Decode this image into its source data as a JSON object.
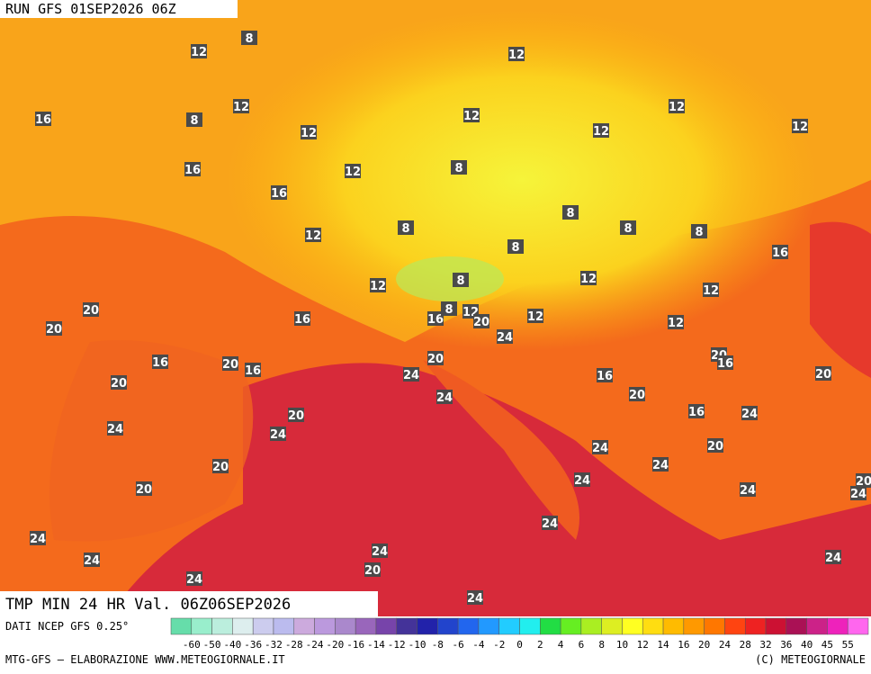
{
  "header": {
    "run": "RUN GFS 01SEP2026 06Z"
  },
  "title": "TMP MIN 24 HR Val. 06Z06SEP2026",
  "source": "DATI NCEP GFS 0.25°",
  "credit_left": "MTG-GFS – ELABORAZIONE WWW.METEOGIORNALE.IT",
  "credit_right": "(C) METEOGIORNALE",
  "colorbar": {
    "ticks": [
      -60,
      -50,
      -40,
      -36,
      -32,
      -28,
      -24,
      -20,
      -16,
      -14,
      -12,
      -10,
      -8,
      -6,
      -4,
      -2,
      0,
      2,
      4,
      6,
      8,
      10,
      12,
      14,
      16,
      20,
      24,
      28,
      32,
      36,
      40,
      45,
      55
    ],
    "colors": [
      "#66ddaa",
      "#99eecc",
      "#bbeedd",
      "#ddeeee",
      "#ccccee",
      "#bbbbee",
      "#ccaadd",
      "#bb99dd",
      "#aa88cc",
      "#9966bb",
      "#7744aa",
      "#443399",
      "#2222aa",
      "#2244cc",
      "#2266ee",
      "#2299ff",
      "#22ccff",
      "#22eeee",
      "#22dd44",
      "#66ee22",
      "#aaee22",
      "#ddee22",
      "#ffff22",
      "#ffdd11",
      "#ffbb00",
      "#ff9900",
      "#ff7700",
      "#ff4411",
      "#ee2222",
      "#cc1133",
      "#aa1155",
      "#cc2288",
      "#ee22bb",
      "#ff66ee"
    ]
  },
  "map_labels": [
    12,
    8,
    12,
    16,
    8,
    12,
    12,
    12,
    12,
    12,
    12,
    16,
    12,
    8,
    16,
    8,
    8,
    8,
    8,
    12,
    8,
    16,
    12,
    12,
    8,
    12,
    20,
    16,
    16,
    12,
    8,
    20,
    12,
    12,
    20,
    24,
    16,
    20,
    16,
    20,
    20,
    16,
    20,
    20,
    24,
    16,
    24,
    20,
    20,
    16,
    24,
    24,
    24,
    24,
    20,
    20,
    24,
    20,
    20,
    24,
    24,
    24,
    24,
    24,
    24,
    24,
    24,
    20,
    24,
    24
  ]
}
